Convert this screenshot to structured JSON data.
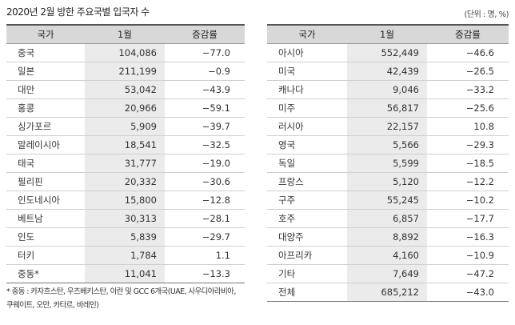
{
  "title": "2020년 2월 방한 주요국별 입국자 수",
  "unit": "(단위 : 명, %)",
  "headers": {
    "country": "국가",
    "jan": "1월",
    "change": "증감률"
  },
  "left_rows": [
    {
      "name": "중국",
      "jan": "104,086",
      "change": "−77.0"
    },
    {
      "name": "일본",
      "jan": "211,199",
      "change": "−0.9"
    },
    {
      "name": "대만",
      "jan": "53,042",
      "change": "−43.9"
    },
    {
      "name": "홍콩",
      "jan": "20,966",
      "change": "−59.1"
    },
    {
      "name": "싱가포르",
      "jan": "5,909",
      "change": "−39.7"
    },
    {
      "name": "말레이시아",
      "jan": "18,541",
      "change": "−32.5"
    },
    {
      "name": "태국",
      "jan": "31,777",
      "change": "−19.0"
    },
    {
      "name": "필리핀",
      "jan": "20,332",
      "change": "−30.6"
    },
    {
      "name": "인도네시아",
      "jan": "15,800",
      "change": "−12.8"
    },
    {
      "name": "베트남",
      "jan": "30,313",
      "change": "−28.1"
    },
    {
      "name": "인도",
      "jan": "5,839",
      "change": "−29.7"
    },
    {
      "name": "터키",
      "jan": "1,784",
      "change": "1.1"
    },
    {
      "name": "중동*",
      "jan": "11,041",
      "change": "−13.3"
    }
  ],
  "right_rows": [
    {
      "name": "아시아",
      "jan": "552,449",
      "change": "−46.6"
    },
    {
      "name": "미국",
      "jan": "42,439",
      "change": "−26.5"
    },
    {
      "name": "캐나다",
      "jan": "9,046",
      "change": "−33.2"
    },
    {
      "name": "미주",
      "jan": "56,817",
      "change": "−25.6"
    },
    {
      "name": "러시아",
      "jan": "22,157",
      "change": "10.8"
    },
    {
      "name": "영국",
      "jan": "5,566",
      "change": "−29.3"
    },
    {
      "name": "독일",
      "jan": "5,599",
      "change": "−18.5"
    },
    {
      "name": "프랑스",
      "jan": "5,120",
      "change": "−12.2"
    },
    {
      "name": "구주",
      "jan": "55,245",
      "change": "−10.2"
    },
    {
      "name": "호주",
      "jan": "6,857",
      "change": "−17.7"
    },
    {
      "name": "대양주",
      "jan": "8,892",
      "change": "−16.3"
    },
    {
      "name": "아프리카",
      "jan": "4,160",
      "change": "−10.9"
    },
    {
      "name": "기타",
      "jan": "7,649",
      "change": "−47.2"
    },
    {
      "name": "전체",
      "jan": "685,212",
      "change": "−43.0"
    }
  ],
  "footnote": {
    "line1": "* 중동 : 카자흐스탄, 우즈베키스탄, 이란 및 GCC 6개국(UAE, 사우디아라비아,",
    "line2": "쿠웨이트, 오만, 카타르, 바레인)"
  }
}
